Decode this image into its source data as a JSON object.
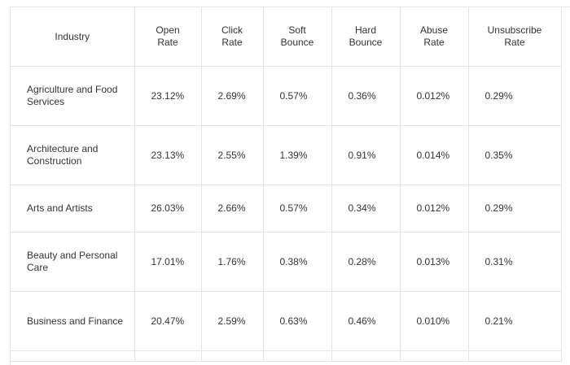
{
  "table": {
    "headers": [
      "Industry",
      "Open\nRate",
      "Click\nRate",
      "Soft\nBounce",
      "Hard\nBounce",
      "Abuse\nRate",
      "Unsubscribe\nRate"
    ],
    "rows": [
      [
        "Agriculture and Food Services",
        "23.12%",
        "2.69%",
        "0.57%",
        "0.36%",
        "0.012%",
        "0.29%"
      ],
      [
        "Architecture and Construction",
        "23.13%",
        "2.55%",
        "1.39%",
        "0.91%",
        "0.014%",
        "0.35%"
      ],
      [
        "Arts and Artists",
        "26.03%",
        "2.66%",
        "0.57%",
        "0.34%",
        "0.012%",
        "0.29%"
      ],
      [
        "Beauty and Personal Care",
        "17.01%",
        "1.76%",
        "0.38%",
        "0.28%",
        "0.013%",
        "0.31%"
      ],
      [
        "Business and Finance",
        "20.47%",
        "2.59%",
        "0.63%",
        "0.46%",
        "0.010%",
        "0.21%"
      ]
    ]
  }
}
